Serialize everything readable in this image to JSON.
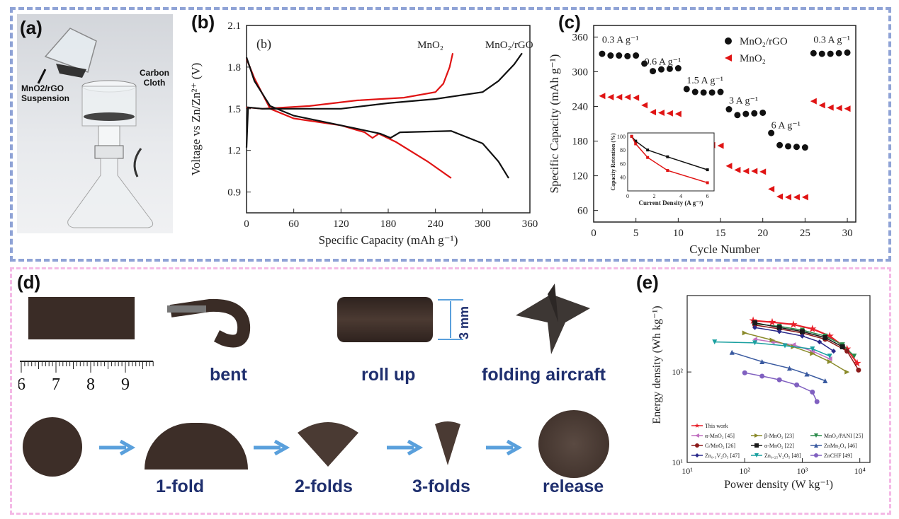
{
  "panels": {
    "a": {
      "label": "(a)",
      "suspension": "MnO2/rGO Suspension",
      "cloth": "Carbon Cloth"
    },
    "b": {
      "label": "(b)",
      "inner_label": "(b)"
    },
    "c": {
      "label": "(c)"
    },
    "d": {
      "label": "(d)",
      "ruler_ticks": [
        "6",
        "7",
        "8",
        "9"
      ],
      "captions": {
        "bent": "bent",
        "roll": "roll up",
        "folding": "folding aircraft",
        "fold1": "1-fold",
        "fold2": "2-folds",
        "fold3": "3-folds",
        "release": "release"
      },
      "dim": "3 mm"
    },
    "e": {
      "label": "(e)"
    }
  },
  "colors": {
    "frame_top": "#8fa3d6",
    "frame_bottom": "#f4b9e6",
    "caption": "#1f2f6e",
    "arrow": "#5aa0dc",
    "black_series": "#111111",
    "red_series": "#e01414"
  },
  "chart_data": [
    {
      "type": "line",
      "id": "b",
      "xlabel": "Specific Capacity (mAh g⁻¹)",
      "ylabel": "Voltage vs Zn/Zn²⁺ (V)",
      "xlim": [
        0,
        360
      ],
      "ylim": [
        0.75,
        2.1
      ],
      "xticks": [
        "0",
        "60",
        "120",
        "180",
        "240",
        "300",
        "360"
      ],
      "yticks": [
        "0.9",
        "1.2",
        "1.5",
        "1.8",
        "2.1"
      ],
      "series": [
        {
          "name": "MnO₂",
          "color": "#e01414",
          "charge": [
            [
              0,
              1.51
            ],
            [
              20,
              1.5
            ],
            [
              80,
              1.52
            ],
            [
              140,
              1.56
            ],
            [
              200,
              1.58
            ],
            [
              240,
              1.62
            ],
            [
              250,
              1.68
            ],
            [
              258,
              1.8
            ],
            [
              262,
              1.9
            ]
          ],
          "discharge": [
            [
              0,
              1.86
            ],
            [
              10,
              1.72
            ],
            [
              30,
              1.5
            ],
            [
              60,
              1.43
            ],
            [
              120,
              1.38
            ],
            [
              150,
              1.33
            ],
            [
              160,
              1.29
            ],
            [
              168,
              1.32
            ],
            [
              190,
              1.26
            ],
            [
              230,
              1.12
            ],
            [
              260,
              1.0
            ]
          ]
        },
        {
          "name": "MnO₂/rGO",
          "color": "#111111",
          "charge": [
            [
              0,
              1.22
            ],
            [
              2,
              1.51
            ],
            [
              20,
              1.5
            ],
            [
              120,
              1.5
            ],
            [
              180,
              1.54
            ],
            [
              240,
              1.57
            ],
            [
              300,
              1.62
            ],
            [
              320,
              1.7
            ],
            [
              340,
              1.82
            ],
            [
              350,
              1.9
            ]
          ],
          "discharge": [
            [
              0,
              1.87
            ],
            [
              10,
              1.7
            ],
            [
              30,
              1.52
            ],
            [
              60,
              1.45
            ],
            [
              120,
              1.38
            ],
            [
              170,
              1.32
            ],
            [
              183,
              1.29
            ],
            [
              195,
              1.33
            ],
            [
              260,
              1.34
            ],
            [
              300,
              1.25
            ],
            [
              320,
              1.12
            ],
            [
              333,
              1.0
            ]
          ]
        }
      ]
    },
    {
      "type": "scatter",
      "id": "c",
      "xlabel": "Cycle Number",
      "ylabel": "Specific Capacity (mAh g⁻¹)",
      "xlim": [
        0,
        31
      ],
      "ylim": [
        40,
        380
      ],
      "xticks": [
        "0",
        "5",
        "10",
        "15",
        "20",
        "25",
        "30"
      ],
      "yticks": [
        "60",
        "120",
        "180",
        "240",
        "300",
        "360"
      ],
      "rate_labels": [
        "0.3 A g⁻¹",
        "0.6 A g⁻¹",
        "1.5 A g⁻¹",
        "3 A g⁻¹",
        "6 A g⁻¹",
        "0.3 A g⁻¹"
      ],
      "series": [
        {
          "name": "MnO₂/rGO",
          "color": "#111111",
          "marker": "circle",
          "x": [
            1,
            2,
            3,
            4,
            5,
            6,
            7,
            8,
            9,
            10,
            11,
            12,
            13,
            14,
            15,
            16,
            17,
            18,
            19,
            20,
            21,
            22,
            23,
            24,
            25,
            26,
            27,
            28,
            29,
            30
          ],
          "y": [
            331,
            328,
            328,
            327,
            328,
            314,
            301,
            304,
            305,
            306,
            270,
            265,
            264,
            264,
            265,
            235,
            225,
            227,
            228,
            229,
            194,
            173,
            171,
            170,
            169,
            332,
            331,
            331,
            332,
            333
          ]
        },
        {
          "name": "MnO₂",
          "color": "#e01414",
          "marker": "triangle-left",
          "x": [
            1,
            2,
            3,
            4,
            5,
            6,
            7,
            8,
            9,
            10,
            11,
            12,
            13,
            14,
            15,
            16,
            17,
            18,
            19,
            20,
            21,
            22,
            23,
            24,
            25,
            26,
            27,
            28,
            29,
            30
          ],
          "y": [
            258,
            256,
            256,
            256,
            255,
            242,
            230,
            229,
            228,
            227,
            188,
            180,
            177,
            173,
            172,
            137,
            130,
            128,
            128,
            127,
            97,
            84,
            83,
            83,
            83,
            249,
            242,
            238,
            237,
            236
          ]
        }
      ],
      "inset": {
        "xlabel": "Current Density (A g⁻¹)",
        "ylabel": "Capacity Retention (%)",
        "xlim": [
          0,
          6.5
        ],
        "ylim": [
          20,
          105
        ],
        "xticks": [
          "0",
          "2",
          "4",
          "6"
        ],
        "yticks": [
          "40",
          "60",
          "80",
          "100"
        ],
        "series": [
          {
            "name": "MnO₂/rGO",
            "color": "#111111",
            "x": [
              0.3,
              0.6,
              1.5,
              3,
              6
            ],
            "y": [
              100,
              93,
              80,
              70,
              51
            ]
          },
          {
            "name": "MnO₂",
            "color": "#e01414",
            "x": [
              0.3,
              0.6,
              1.5,
              3,
              6
            ],
            "y": [
              100,
              89,
              69,
              50,
              32
            ]
          }
        ]
      }
    },
    {
      "type": "line",
      "id": "e",
      "xlabel": "Power density (W kg⁻¹)",
      "ylabel": "Energy density (Wh kg⁻¹)",
      "scale": "log",
      "xlim": [
        10,
        15000
      ],
      "ylim": [
        10,
        700
      ],
      "xticks": [
        "10¹",
        "10²",
        "10³",
        "10⁴"
      ],
      "yticks": [
        "10¹",
        "10²"
      ],
      "series": [
        {
          "name": "This work",
          "color": "#e8202a",
          "marker": "star",
          "x": [
            140,
            300,
            700,
            1500,
            3000,
            6000,
            9000
          ],
          "y": [
            370,
            355,
            335,
            300,
            250,
            180,
            125
          ]
        },
        {
          "name": "α-MnO₂ [45]",
          "color": "#c070c0",
          "marker": "triangle-left",
          "x": [
            150,
            300,
            700,
            1500,
            3000
          ],
          "y": [
            230,
            215,
            200,
            170,
            140
          ]
        },
        {
          "name": "β-MnO₂ [23]",
          "color": "#8a8a2a",
          "marker": "triangle-right",
          "x": [
            100,
            300,
            700,
            1500,
            3000,
            6000
          ],
          "y": [
            270,
            225,
            190,
            160,
            130,
            100
          ]
        },
        {
          "name": "MnO₂/PANI [25]",
          "color": "#2a8a4a",
          "marker": "triangle-down",
          "x": [
            150,
            400,
            1000,
            2500,
            5000,
            8000
          ],
          "y": [
            340,
            320,
            290,
            250,
            200,
            150
          ]
        },
        {
          "name": "G/MnO₂ [26]",
          "color": "#8b1a1a",
          "marker": "circle",
          "x": [
            150,
            400,
            1000,
            2500,
            6000,
            9500
          ],
          "y": [
            330,
            300,
            270,
            230,
            170,
            105
          ]
        },
        {
          "name": "α-MnO₂ [22]",
          "color": "#1a1a1a",
          "marker": "square",
          "x": [
            150,
            400,
            1000,
            2500,
            5000
          ],
          "y": [
            350,
            310,
            280,
            240,
            190
          ]
        },
        {
          "name": "ZnMn₂O₄ [46]",
          "color": "#3a5aa0",
          "marker": "triangle-up",
          "x": [
            60,
            200,
            600,
            1200,
            2500
          ],
          "y": [
            165,
            130,
            110,
            95,
            80
          ]
        },
        {
          "name": "Zn₀.₃V₂O₅ [47]",
          "color": "#2a2a8a",
          "marker": "diamond",
          "x": [
            150,
            400,
            1000,
            2000,
            3500
          ],
          "y": [
            310,
            280,
            250,
            215,
            170
          ]
        },
        {
          "name": "Zn₀.₂₅V₂O₅ [48]",
          "color": "#1aa0a0",
          "marker": "triangle-down",
          "x": [
            30,
            150,
            500,
            1500,
            3000
          ],
          "y": [
            215,
            210,
            195,
            180,
            150
          ]
        },
        {
          "name": "ZnCHF [49]",
          "color": "#8060c0",
          "marker": "circle",
          "x": [
            100,
            200,
            400,
            800,
            1500,
            1800
          ],
          "y": [
            98,
            90,
            82,
            72,
            60,
            47
          ]
        }
      ]
    }
  ]
}
